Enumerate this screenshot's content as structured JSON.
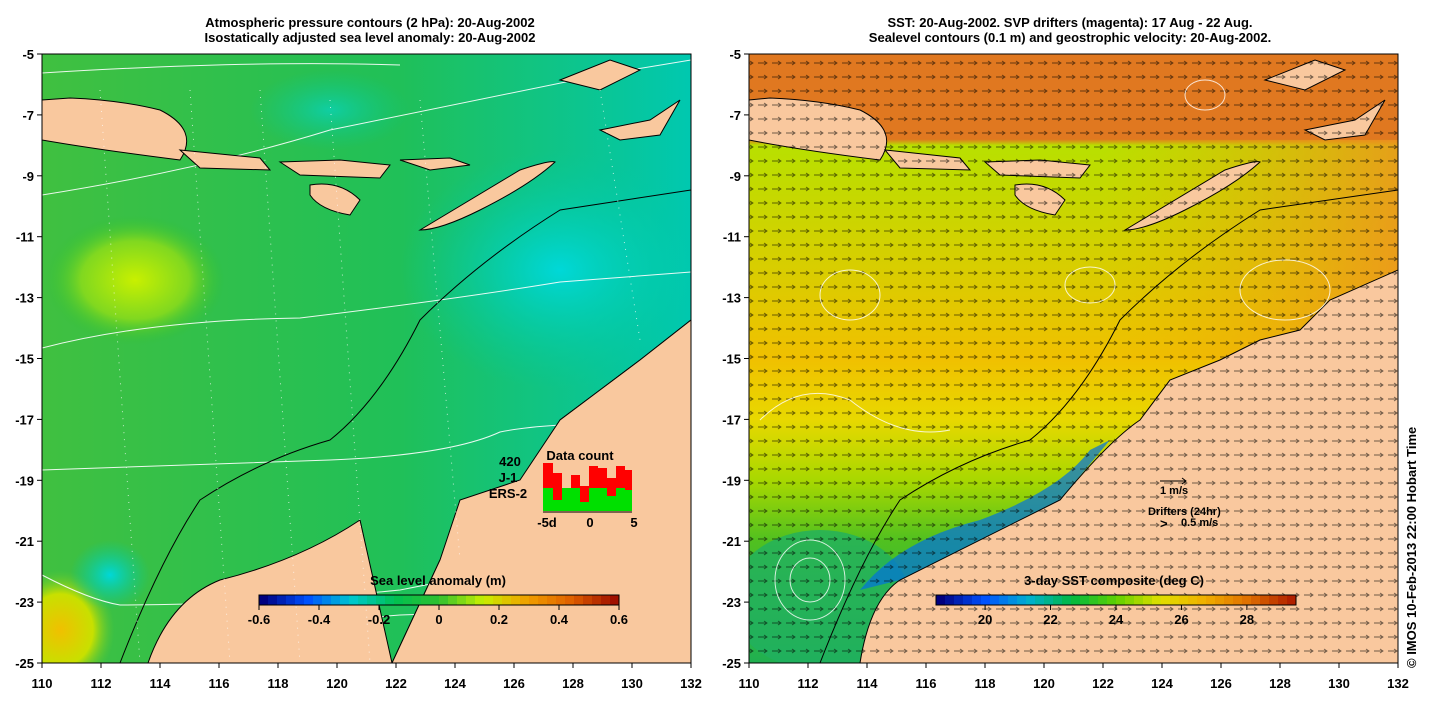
{
  "left_panel": {
    "title_line1": "Atmospheric pressure contours (2 hPa): 20-Aug-2002",
    "title_line2": "Isostatically adjusted sea level anomaly: 20-Aug-2002",
    "x_ticks": [
      "110",
      "112",
      "114",
      "116",
      "118",
      "120",
      "122",
      "124",
      "126",
      "128",
      "130",
      "132"
    ],
    "y_ticks": [
      "-5",
      "-7",
      "-9",
      "-11",
      "-13",
      "-15",
      "-17",
      "-19",
      "-21",
      "-23",
      "-25"
    ],
    "colorbar": {
      "title": "Sea level anomaly (m)",
      "ticks": [
        "-0.6",
        "-0.4",
        "-0.2",
        "0",
        "0.2",
        "0.4",
        "0.6"
      ],
      "range": [
        -0.6,
        0.6
      ]
    },
    "data_count": {
      "title": "Data count",
      "total": "420",
      "series": [
        {
          "name": "J-1",
          "color": "#ff0000"
        },
        {
          "name": "ERS-2",
          "color": "#00e000"
        }
      ],
      "axis_labels": [
        "-5d",
        "0",
        "5"
      ]
    }
  },
  "right_panel": {
    "title_line1": "SST: 20-Aug-2002. SVP drifters (magenta): 17 Aug - 22 Aug.",
    "title_line2": "Sealevel contours (0.1 m) and geostrophic velocity: 20-Aug-2002.",
    "x_ticks": [
      "110",
      "112",
      "114",
      "116",
      "118",
      "120",
      "122",
      "124",
      "126",
      "128",
      "130",
      "132"
    ],
    "y_ticks": [
      "-5",
      "-7",
      "-9",
      "-11",
      "-13",
      "-15",
      "-17",
      "-19",
      "-21",
      "-23",
      "-25"
    ],
    "colorbar": {
      "title": "3-day SST composite (deg C)",
      "ticks": [
        "20",
        "22",
        "24",
        "26",
        "28"
      ],
      "range": [
        18.5,
        29.5
      ]
    },
    "legend": {
      "velocity_scale": "1 m/s",
      "drifters_label": "Drifters (24hr)",
      "drifter_marker": ">",
      "drifter_speed": "0.5 m/s"
    }
  },
  "copyright": "© IMOS 10-Feb-2013 22:00 Hobart Time",
  "colors": {
    "land": "#f9c89e",
    "sla_ramp": [
      "#00007f",
      "#0050ff",
      "#00c8d0",
      "#00c050",
      "#30c030",
      "#c8f000",
      "#f0a000",
      "#e06000",
      "#a01000"
    ],
    "sst_ramp": [
      "#00007f",
      "#0050ff",
      "#00b0d0",
      "#00b840",
      "#60d000",
      "#e0e000",
      "#f0b000",
      "#e07000",
      "#b02000"
    ]
  }
}
